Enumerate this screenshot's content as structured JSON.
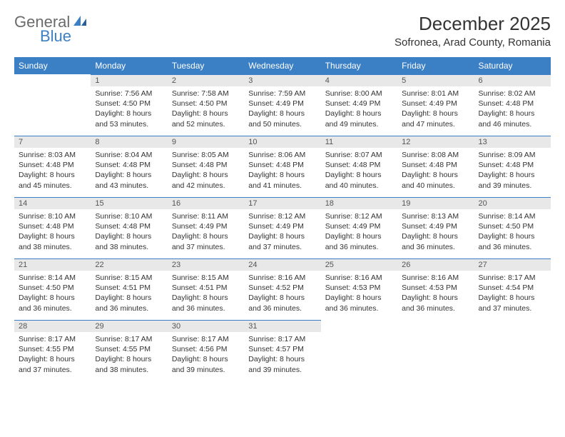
{
  "logo": {
    "general": "General",
    "blue": "Blue"
  },
  "title": {
    "month": "December 2025",
    "location": "Sofronea, Arad County, Romania"
  },
  "colors": {
    "accent": "#3b7fc4",
    "dayheader": "#e8e8e8",
    "text": "#333333",
    "bg": "#ffffff"
  },
  "weekdays": [
    "Sunday",
    "Monday",
    "Tuesday",
    "Wednesday",
    "Thursday",
    "Friday",
    "Saturday"
  ],
  "weeks": [
    [
      {
        "day": "",
        "sunrise": "",
        "sunset": "",
        "daylight1": "",
        "daylight2": ""
      },
      {
        "day": "1",
        "sunrise": "Sunrise: 7:56 AM",
        "sunset": "Sunset: 4:50 PM",
        "daylight1": "Daylight: 8 hours",
        "daylight2": "and 53 minutes."
      },
      {
        "day": "2",
        "sunrise": "Sunrise: 7:58 AM",
        "sunset": "Sunset: 4:50 PM",
        "daylight1": "Daylight: 8 hours",
        "daylight2": "and 52 minutes."
      },
      {
        "day": "3",
        "sunrise": "Sunrise: 7:59 AM",
        "sunset": "Sunset: 4:49 PM",
        "daylight1": "Daylight: 8 hours",
        "daylight2": "and 50 minutes."
      },
      {
        "day": "4",
        "sunrise": "Sunrise: 8:00 AM",
        "sunset": "Sunset: 4:49 PM",
        "daylight1": "Daylight: 8 hours",
        "daylight2": "and 49 minutes."
      },
      {
        "day": "5",
        "sunrise": "Sunrise: 8:01 AM",
        "sunset": "Sunset: 4:49 PM",
        "daylight1": "Daylight: 8 hours",
        "daylight2": "and 47 minutes."
      },
      {
        "day": "6",
        "sunrise": "Sunrise: 8:02 AM",
        "sunset": "Sunset: 4:48 PM",
        "daylight1": "Daylight: 8 hours",
        "daylight2": "and 46 minutes."
      }
    ],
    [
      {
        "day": "7",
        "sunrise": "Sunrise: 8:03 AM",
        "sunset": "Sunset: 4:48 PM",
        "daylight1": "Daylight: 8 hours",
        "daylight2": "and 45 minutes."
      },
      {
        "day": "8",
        "sunrise": "Sunrise: 8:04 AM",
        "sunset": "Sunset: 4:48 PM",
        "daylight1": "Daylight: 8 hours",
        "daylight2": "and 43 minutes."
      },
      {
        "day": "9",
        "sunrise": "Sunrise: 8:05 AM",
        "sunset": "Sunset: 4:48 PM",
        "daylight1": "Daylight: 8 hours",
        "daylight2": "and 42 minutes."
      },
      {
        "day": "10",
        "sunrise": "Sunrise: 8:06 AM",
        "sunset": "Sunset: 4:48 PM",
        "daylight1": "Daylight: 8 hours",
        "daylight2": "and 41 minutes."
      },
      {
        "day": "11",
        "sunrise": "Sunrise: 8:07 AM",
        "sunset": "Sunset: 4:48 PM",
        "daylight1": "Daylight: 8 hours",
        "daylight2": "and 40 minutes."
      },
      {
        "day": "12",
        "sunrise": "Sunrise: 8:08 AM",
        "sunset": "Sunset: 4:48 PM",
        "daylight1": "Daylight: 8 hours",
        "daylight2": "and 40 minutes."
      },
      {
        "day": "13",
        "sunrise": "Sunrise: 8:09 AM",
        "sunset": "Sunset: 4:48 PM",
        "daylight1": "Daylight: 8 hours",
        "daylight2": "and 39 minutes."
      }
    ],
    [
      {
        "day": "14",
        "sunrise": "Sunrise: 8:10 AM",
        "sunset": "Sunset: 4:48 PM",
        "daylight1": "Daylight: 8 hours",
        "daylight2": "and 38 minutes."
      },
      {
        "day": "15",
        "sunrise": "Sunrise: 8:10 AM",
        "sunset": "Sunset: 4:48 PM",
        "daylight1": "Daylight: 8 hours",
        "daylight2": "and 38 minutes."
      },
      {
        "day": "16",
        "sunrise": "Sunrise: 8:11 AM",
        "sunset": "Sunset: 4:49 PM",
        "daylight1": "Daylight: 8 hours",
        "daylight2": "and 37 minutes."
      },
      {
        "day": "17",
        "sunrise": "Sunrise: 8:12 AM",
        "sunset": "Sunset: 4:49 PM",
        "daylight1": "Daylight: 8 hours",
        "daylight2": "and 37 minutes."
      },
      {
        "day": "18",
        "sunrise": "Sunrise: 8:12 AM",
        "sunset": "Sunset: 4:49 PM",
        "daylight1": "Daylight: 8 hours",
        "daylight2": "and 36 minutes."
      },
      {
        "day": "19",
        "sunrise": "Sunrise: 8:13 AM",
        "sunset": "Sunset: 4:49 PM",
        "daylight1": "Daylight: 8 hours",
        "daylight2": "and 36 minutes."
      },
      {
        "day": "20",
        "sunrise": "Sunrise: 8:14 AM",
        "sunset": "Sunset: 4:50 PM",
        "daylight1": "Daylight: 8 hours",
        "daylight2": "and 36 minutes."
      }
    ],
    [
      {
        "day": "21",
        "sunrise": "Sunrise: 8:14 AM",
        "sunset": "Sunset: 4:50 PM",
        "daylight1": "Daylight: 8 hours",
        "daylight2": "and 36 minutes."
      },
      {
        "day": "22",
        "sunrise": "Sunrise: 8:15 AM",
        "sunset": "Sunset: 4:51 PM",
        "daylight1": "Daylight: 8 hours",
        "daylight2": "and 36 minutes."
      },
      {
        "day": "23",
        "sunrise": "Sunrise: 8:15 AM",
        "sunset": "Sunset: 4:51 PM",
        "daylight1": "Daylight: 8 hours",
        "daylight2": "and 36 minutes."
      },
      {
        "day": "24",
        "sunrise": "Sunrise: 8:16 AM",
        "sunset": "Sunset: 4:52 PM",
        "daylight1": "Daylight: 8 hours",
        "daylight2": "and 36 minutes."
      },
      {
        "day": "25",
        "sunrise": "Sunrise: 8:16 AM",
        "sunset": "Sunset: 4:53 PM",
        "daylight1": "Daylight: 8 hours",
        "daylight2": "and 36 minutes."
      },
      {
        "day": "26",
        "sunrise": "Sunrise: 8:16 AM",
        "sunset": "Sunset: 4:53 PM",
        "daylight1": "Daylight: 8 hours",
        "daylight2": "and 36 minutes."
      },
      {
        "day": "27",
        "sunrise": "Sunrise: 8:17 AM",
        "sunset": "Sunset: 4:54 PM",
        "daylight1": "Daylight: 8 hours",
        "daylight2": "and 37 minutes."
      }
    ],
    [
      {
        "day": "28",
        "sunrise": "Sunrise: 8:17 AM",
        "sunset": "Sunset: 4:55 PM",
        "daylight1": "Daylight: 8 hours",
        "daylight2": "and 37 minutes."
      },
      {
        "day": "29",
        "sunrise": "Sunrise: 8:17 AM",
        "sunset": "Sunset: 4:55 PM",
        "daylight1": "Daylight: 8 hours",
        "daylight2": "and 38 minutes."
      },
      {
        "day": "30",
        "sunrise": "Sunrise: 8:17 AM",
        "sunset": "Sunset: 4:56 PM",
        "daylight1": "Daylight: 8 hours",
        "daylight2": "and 39 minutes."
      },
      {
        "day": "31",
        "sunrise": "Sunrise: 8:17 AM",
        "sunset": "Sunset: 4:57 PM",
        "daylight1": "Daylight: 8 hours",
        "daylight2": "and 39 minutes."
      },
      {
        "day": "",
        "sunrise": "",
        "sunset": "",
        "daylight1": "",
        "daylight2": ""
      },
      {
        "day": "",
        "sunrise": "",
        "sunset": "",
        "daylight1": "",
        "daylight2": ""
      },
      {
        "day": "",
        "sunrise": "",
        "sunset": "",
        "daylight1": "",
        "daylight2": ""
      }
    ]
  ]
}
